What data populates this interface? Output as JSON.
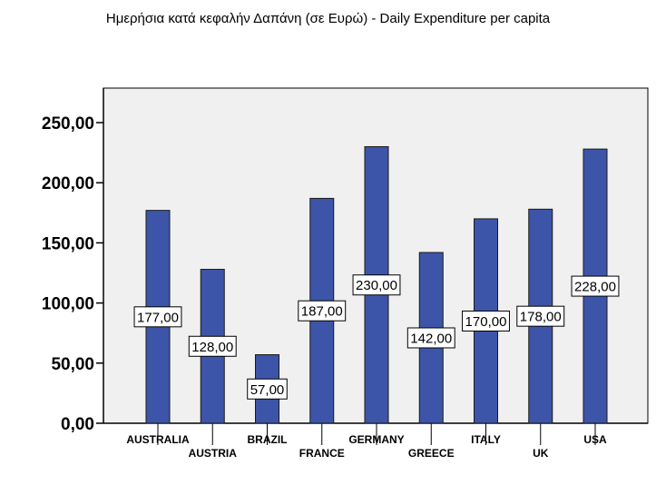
{
  "chart_data": {
    "type": "bar",
    "title": "Ημερήσια κατά κεφαλήν Δαπάνη (σε Ευρώ) - Daily Expenditure per capita",
    "xlabel": "",
    "ylabel": "",
    "categories": [
      "AUSTRALIA",
      "AUSTRIA",
      "BRAZIL",
      "FRANCE",
      "GERMANY",
      "GREECE",
      "ITALY",
      "UK",
      "USA"
    ],
    "values": [
      177,
      128,
      57,
      187,
      230,
      142,
      170,
      178,
      228
    ],
    "data_labels": [
      "177,00",
      "128,00",
      "57,00",
      "187,00",
      "230,00",
      "142,00",
      "170,00",
      "178,00",
      "228,00"
    ],
    "ylim": [
      0,
      250
    ],
    "yticks": [
      0,
      50,
      100,
      150,
      200,
      250
    ],
    "ytick_labels": [
      "0,00",
      "50,00",
      "100,00",
      "150,00",
      "200,00",
      "250,00"
    ],
    "grid": false,
    "legend": "none",
    "colors": {
      "bar_fill": "#3d55a8",
      "bar_stroke": "#1a1a1a",
      "plot_bg": "#f0f0f0",
      "axis": "#000000"
    }
  }
}
